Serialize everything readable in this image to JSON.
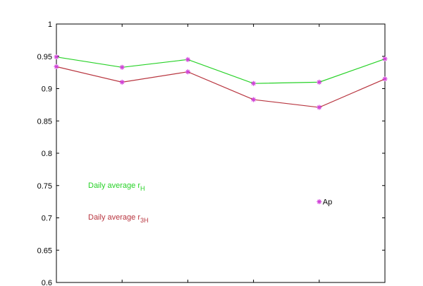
{
  "chart_data": {
    "type": "line",
    "x": [
      1,
      2,
      3,
      4,
      5,
      6
    ],
    "xlim": [
      1,
      6
    ],
    "ylim": [
      0.6,
      1.0
    ],
    "y_ticks": [
      "1",
      "0.95",
      "0.9",
      "0.85",
      "0.8",
      "0.75",
      "0.7",
      "0.65",
      "0.6"
    ],
    "y_tick_values": [
      1.0,
      0.95,
      0.9,
      0.85,
      0.8,
      0.75,
      0.7,
      0.65,
      0.6
    ],
    "grid": false,
    "series": [
      {
        "name": "Daily average r_H",
        "values": [
          0.949,
          0.933,
          0.945,
          0.908,
          0.91,
          0.946
        ]
      },
      {
        "name": "Daily average r_3H",
        "values": [
          0.934,
          0.91,
          0.926,
          0.883,
          0.871,
          0.915
        ]
      }
    ],
    "annotations": [
      {
        "prefix": "Daily average r",
        "subscript": "H"
      },
      {
        "prefix": "Daily average r",
        "subscript": "3H"
      }
    ],
    "point_annotation": {
      "label": "Ap",
      "x": 5.0,
      "y": 0.725
    }
  },
  "colors": {
    "series_0": "#27d227",
    "series_1": "#b8353f",
    "marker": "#d040d8",
    "axis": "#000000"
  },
  "marker_icon": "asterisk-marker"
}
